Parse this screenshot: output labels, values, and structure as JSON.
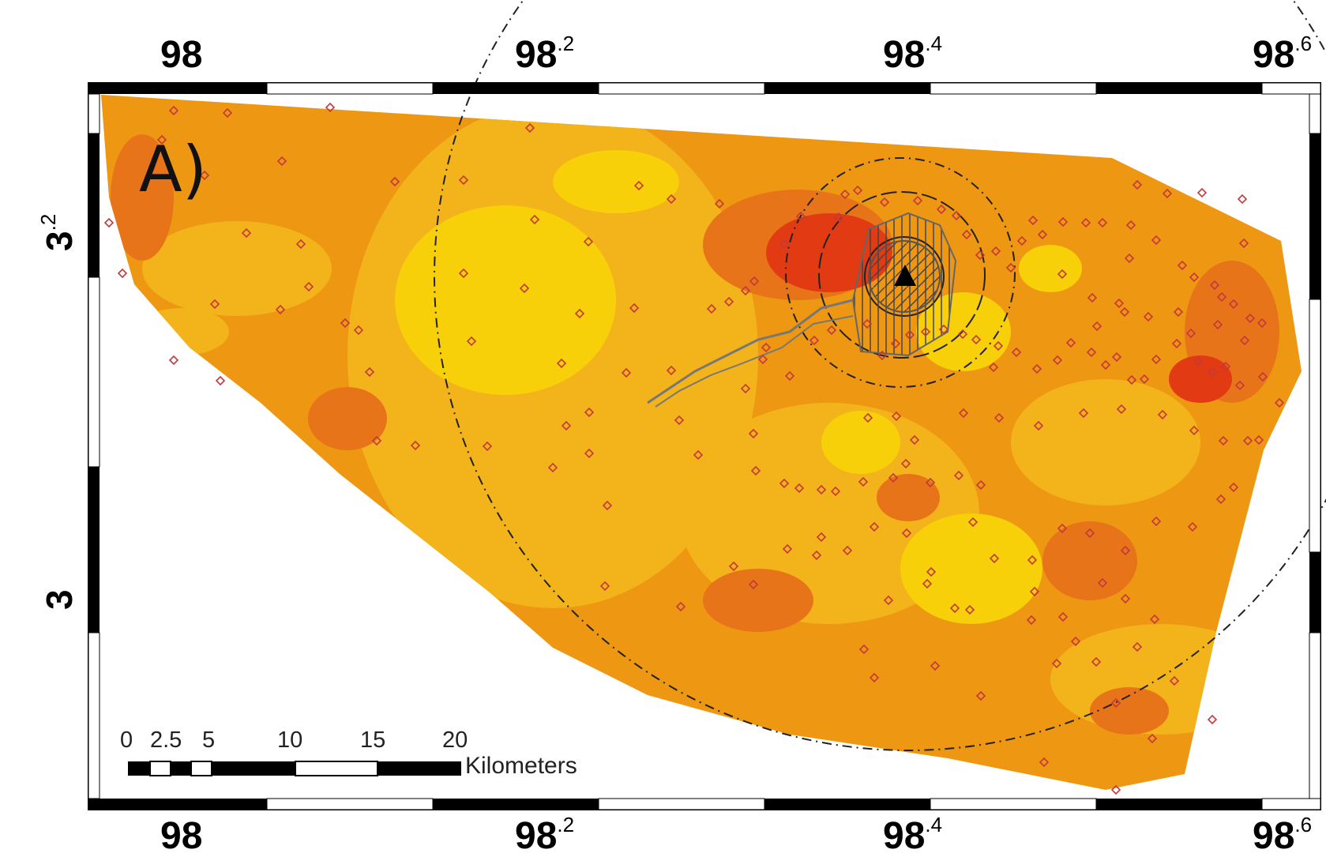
{
  "panel_label": "A)",
  "longitude_labels_top": [
    {
      "int": "98",
      "dec": ""
    },
    {
      "int": "98",
      "dec": ".2"
    },
    {
      "int": "98",
      "dec": ".4"
    },
    {
      "int": "98",
      "dec": ".6"
    }
  ],
  "longitude_labels_bottom": [
    {
      "int": "98",
      "dec": ""
    },
    {
      "int": "98",
      "dec": ".2"
    },
    {
      "int": "98",
      "dec": ".4"
    },
    {
      "int": "98",
      "dec": ".6"
    }
  ],
  "latitude_labels": [
    {
      "int": "3",
      "dec": ".2"
    },
    {
      "int": "3",
      "dec": ""
    }
  ],
  "scale_bar": {
    "ticks": [
      "0",
      "2.5",
      "5",
      "10",
      "15",
      "20"
    ],
    "unit": "Kilometers"
  },
  "colors": {
    "low": "#f7d00a",
    "mid_low": "#f3b31a",
    "mid": "#ee9712",
    "mid_high": "#e8741a",
    "high": "#e23a12",
    "station": "#c43a3a",
    "volcano": "#000000"
  },
  "symbols": {
    "station_marker": "diamond-icon",
    "volcano_marker": "triangle-icon"
  }
}
